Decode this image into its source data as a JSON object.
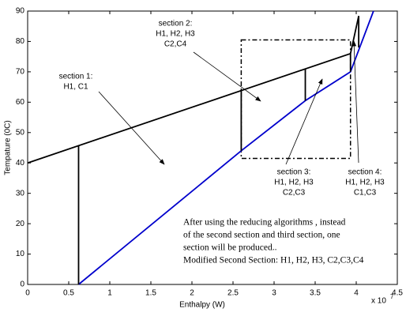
{
  "chart_data": {
    "type": "line",
    "xlabel": "Enthalpy (W)",
    "ylabel": "Tempature (0C)",
    "x_multiplier": {
      "base": "x 10",
      "exponent": "7"
    },
    "xlim": [
      0,
      4.5
    ],
    "xticks": [
      0,
      0.5,
      1,
      1.5,
      2,
      2.5,
      3,
      3.5,
      4,
      4.5
    ],
    "ylim": [
      0,
      90
    ],
    "yticks": [
      0,
      10,
      20,
      30,
      40,
      50,
      60,
      70,
      80,
      90
    ],
    "series": [
      {
        "color": "#000000",
        "x": [
          0,
          3.93,
          4.03
        ],
        "values": [
          40,
          76,
          88.4
        ]
      },
      {
        "color": "#0000cc",
        "x": [
          0.62,
          2.6,
          3.38,
          3.93,
          4.21
        ],
        "values": [
          0,
          44,
          60.5,
          70,
          90
        ]
      },
      {
        "color": "#000000",
        "x": [
          0.62,
          0.62
        ],
        "values": [
          0,
          45.7
        ]
      },
      {
        "color": "#000000",
        "x": [
          2.6,
          2.6
        ],
        "values": [
          44,
          63.8
        ]
      },
      {
        "color": "#000000",
        "x": [
          3.38,
          3.38
        ],
        "values": [
          60.5,
          71
        ]
      },
      {
        "color": "#000000",
        "x": [
          3.93,
          3.93
        ],
        "values": [
          70,
          76
        ]
      },
      {
        "color": "#000000",
        "x": [
          4.03,
          4.03
        ],
        "values": [
          78,
          88.4
        ]
      }
    ],
    "region": {
      "x": [
        2.6,
        3.93
      ],
      "y": [
        41.5,
        80.5
      ]
    },
    "annotations": [
      {
        "lines": [
          "section 1:",
          "H1, C1"
        ]
      },
      {
        "lines": [
          "section 2:",
          "H1, H2, H3",
          "C2,C4"
        ]
      },
      {
        "lines": [
          "section 3:",
          "H1, H2, H3",
          "C2,C3"
        ]
      },
      {
        "lines": [
          "section 4:",
          "H1, H2, H3",
          "C1,C3"
        ]
      }
    ],
    "note": [
      "After using the reducing algorithms , instead",
      "of the second section and third section, one",
      "section will be produced..",
      "Modified Second Section: H1, H2, H3, C2,C3,C4"
    ]
  }
}
